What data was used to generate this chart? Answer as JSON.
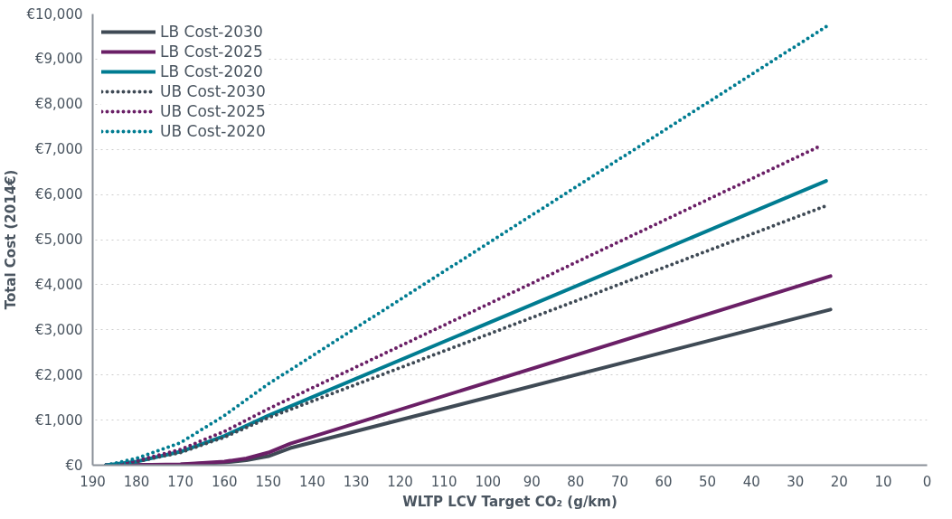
{
  "chart_data": {
    "type": "line",
    "xlabel": "WLTP LCV Target CO₂ (g/km)",
    "ylabel": "Total Cost (2014€)",
    "xlim": [
      190,
      0
    ],
    "xticks": [
      190,
      180,
      170,
      160,
      150,
      140,
      130,
      120,
      110,
      100,
      90,
      80,
      70,
      60,
      50,
      40,
      30,
      20,
      10,
      0
    ],
    "ylim": [
      0,
      10000
    ],
    "yticks": [
      {
        "value": 0,
        "label": "€0"
      },
      {
        "value": 1000,
        "label": "€1,000"
      },
      {
        "value": 2000,
        "label": "€2,000"
      },
      {
        "value": 3000,
        "label": "€3,000"
      },
      {
        "value": 4000,
        "label": "€4,000"
      },
      {
        "value": 5000,
        "label": "€5,000"
      },
      {
        "value": 6000,
        "label": "€6,000"
      },
      {
        "value": 7000,
        "label": "€7,000"
      },
      {
        "value": 8000,
        "label": "€8,000"
      },
      {
        "value": 9000,
        "label": "€9,000"
      },
      {
        "value": 10000,
        "label": "€10,000"
      }
    ],
    "grid": "y",
    "legend": "top left",
    "series": [
      {
        "name": "LB Cost-2030",
        "color": "#3f4a55",
        "line_style": "solid",
        "x": [
          187,
          180,
          170,
          160,
          155,
          150,
          145,
          22
        ],
        "values": [
          0,
          5,
          15,
          60,
          110,
          200,
          380,
          3450
        ]
      },
      {
        "name": "LB Cost-2025",
        "color": "#6a1f66",
        "line_style": "solid",
        "x": [
          187,
          180,
          170,
          160,
          155,
          150,
          145,
          22
        ],
        "values": [
          0,
          5,
          20,
          80,
          150,
          280,
          480,
          4190
        ]
      },
      {
        "name": "LB Cost-2020",
        "color": "#007c91",
        "line_style": "solid",
        "x": [
          187,
          180,
          170,
          160,
          150,
          23
        ],
        "values": [
          0,
          80,
          300,
          650,
          1100,
          6300
        ]
      },
      {
        "name": "UB Cost-2030",
        "color": "#3f4a55",
        "line_style": "dotted",
        "x": [
          187,
          180,
          170,
          160,
          150,
          23
        ],
        "values": [
          0,
          80,
          280,
          620,
          1050,
          5750
        ]
      },
      {
        "name": "UB Cost-2025",
        "color": "#6a1f66",
        "line_style": "dotted",
        "x": [
          187,
          180,
          170,
          160,
          150,
          24
        ],
        "values": [
          0,
          100,
          350,
          750,
          1250,
          7090
        ]
      },
      {
        "name": "UB Cost-2020",
        "color": "#007c91",
        "line_style": "dotted",
        "x": [
          187,
          180,
          170,
          160,
          150,
          23
        ],
        "values": [
          0,
          150,
          500,
          1100,
          1800,
          9720
        ]
      }
    ]
  }
}
